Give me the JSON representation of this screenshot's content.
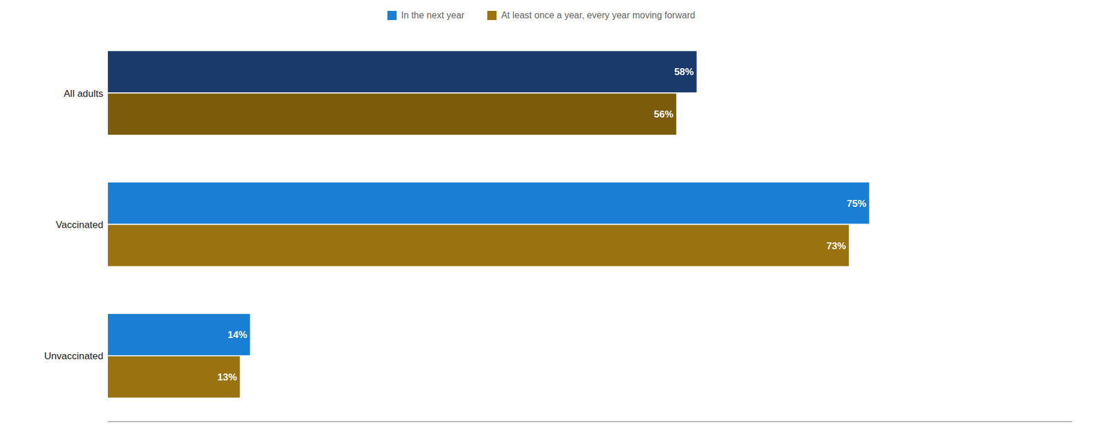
{
  "chart_data": {
    "type": "bar",
    "orientation": "horizontal",
    "categories": [
      "All adults",
      "Vaccinated",
      "Unvaccinated"
    ],
    "series": [
      {
        "name": "In the next year",
        "color": "#1a7fd4",
        "colors": [
          "#1a3a6b",
          "#1a7fd4",
          "#1a7fd4"
        ],
        "values": [
          58,
          75,
          14
        ],
        "value_labels": [
          "58%",
          "75%",
          "14%"
        ]
      },
      {
        "name": "At least once a year, every year moving forward",
        "color": "#9a7310",
        "colors": [
          "#7a5c0a",
          "#9a7310",
          "#9a7310"
        ],
        "values": [
          56,
          73,
          13
        ],
        "value_labels": [
          "56%",
          "73%",
          "13%"
        ]
      }
    ],
    "xlim": [
      0,
      95
    ],
    "grid": false,
    "legend": "top",
    "data_labels": true,
    "tick_labels": "y"
  }
}
